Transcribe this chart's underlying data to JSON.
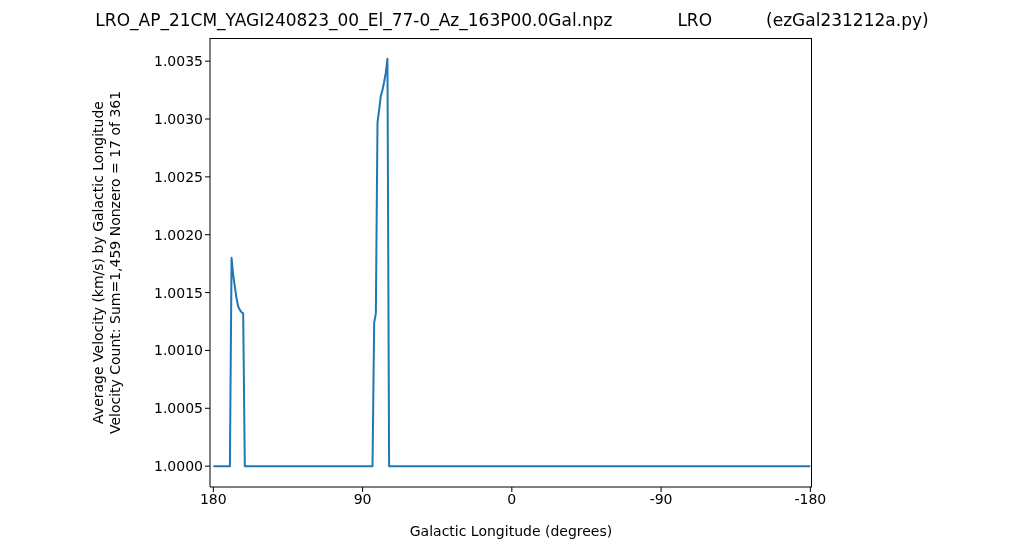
{
  "chart_data": {
    "type": "line",
    "title": "LRO_AP_21CM_YAGI240823_00_El_77-0_Az_163P00.0Gal.npz            LRO          (ezGal231212a.py)",
    "xlabel": "Galactic Longitude (degrees)",
    "ylabel": "Average Velocity (km/s) by Galactic Longitude\nVelocity Count: Sum=1,459 Nonzero = 17 of 361",
    "series": [
      {
        "color": "#1f77b4",
        "x": [
          180,
          170,
          169,
          168,
          167,
          166,
          165,
          164,
          163,
          162,
          161,
          84,
          83,
          82,
          81,
          80,
          79,
          78,
          77,
          76,
          75,
          74,
          -180
        ],
        "values": [
          1.0,
          1.0,
          1.0018,
          1.00165,
          1.00155,
          1.00145,
          1.00138,
          1.00135,
          1.00133,
          1.00132,
          1.0,
          1.0,
          1.00124,
          1.00132,
          1.00297,
          1.00308,
          1.0032,
          1.00325,
          1.00332,
          1.0034,
          1.00352,
          1.0,
          1.0
        ]
      }
    ],
    "xlim": [
      182,
      -181
    ],
    "xticks": [
      180,
      90,
      0,
      -90,
      -180
    ],
    "ylim": [
      0.99982,
      1.0037
    ],
    "yticks": [
      {
        "value": 1.0,
        "label": "1.0000"
      },
      {
        "value": 1.0005,
        "label": "1.0005"
      },
      {
        "value": 1.001,
        "label": "1.0010"
      },
      {
        "value": 1.0015,
        "label": "1.0015"
      },
      {
        "value": 1.002,
        "label": "1.0020"
      },
      {
        "value": 1.0025,
        "label": "1.0025"
      },
      {
        "value": 1.003,
        "label": "1.0030"
      },
      {
        "value": 1.0035,
        "label": "1.0035"
      }
    ]
  }
}
